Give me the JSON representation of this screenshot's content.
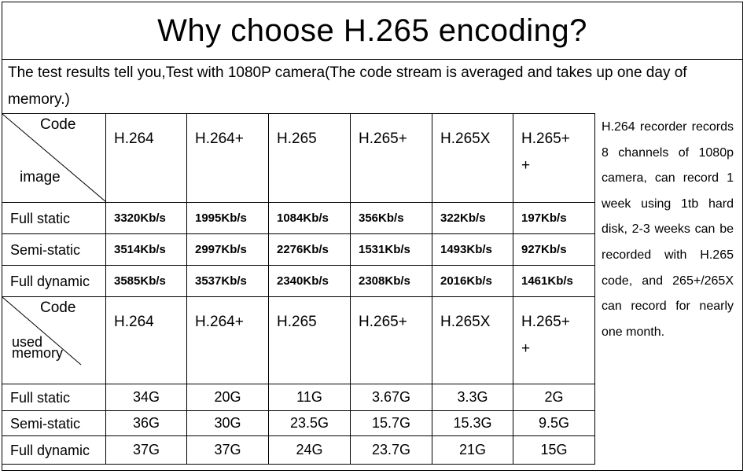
{
  "title": "Why choose H.265 encoding?",
  "intro": "The test results tell you,Test with 1080P camera(The code stream is averaged and takes up one day of memory.)",
  "table1": {
    "corner_top": "Code",
    "corner_bottom": "image",
    "codecs": [
      "H.264",
      "H.264+",
      "H.265",
      "H.265+",
      "H.265X",
      "H.265+ +"
    ],
    "rows": [
      {
        "label": "Full static",
        "values": [
          "3320Kb/s",
          "1995Kb/s",
          "1084Kb/s",
          "356Kb/s",
          "322Kb/s",
          "197Kb/s"
        ]
      },
      {
        "label": "Semi-static",
        "values": [
          "3514Kb/s",
          "2997Kb/s",
          "2276Kb/s",
          "1531Kb/s",
          "1493Kb/s",
          "927Kb/s"
        ]
      },
      {
        "label": "Full dynamic",
        "values": [
          "3585Kb/s",
          "3537Kb/s",
          "2340Kb/s",
          "2308Kb/s",
          "2016Kb/s",
          "1461Kb/s"
        ]
      }
    ]
  },
  "table2": {
    "corner_top": "Code",
    "corner_bottom": "used memory",
    "codecs": [
      "H.264",
      "H.264+",
      "H.265",
      "H.265+",
      "H.265X",
      "H.265+ +"
    ],
    "rows": [
      {
        "label": "Full static",
        "values": [
          "34G",
          "20G",
          "11G",
          "3.67G",
          "3.3G",
          "2G"
        ]
      },
      {
        "label": "Semi-static",
        "values": [
          "36G",
          "30G",
          "23.5G",
          "15.7G",
          "15.3G",
          "9.5G"
        ]
      },
      {
        "label": "Full dynamic",
        "values": [
          "37G",
          "37G",
          "24G",
          "23.7G",
          "21G",
          "15G"
        ]
      }
    ]
  },
  "side_note": "H.264 recorder records 8 channels of 1080p camera, can record 1 week using 1tb hard disk, 2-3 weeks can be recorded with H.265 code, and 265+/265X can record for nearly one month."
}
